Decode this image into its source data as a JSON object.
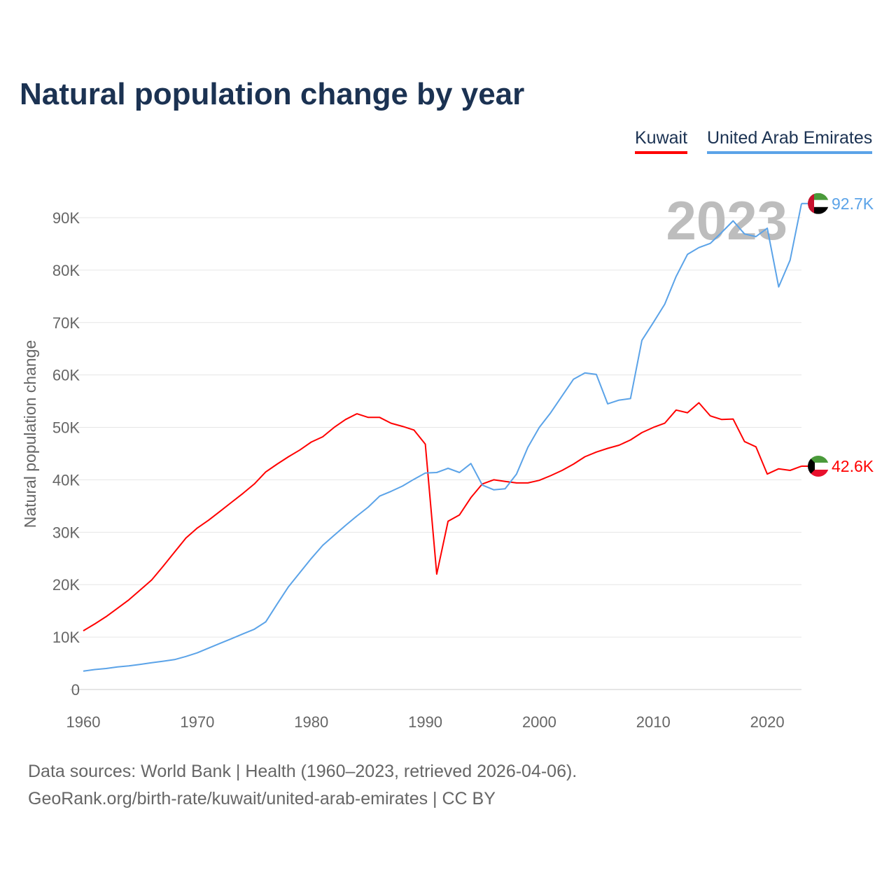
{
  "chart_data": {
    "type": "line",
    "title": "Natural population change by year",
    "xlabel": "",
    "ylabel": "Natural population change",
    "xlim": [
      1960,
      2023
    ],
    "ylim": [
      0,
      90000
    ],
    "x_ticks": [
      "1960",
      "1970",
      "1980",
      "1990",
      "2000",
      "2010",
      "2020"
    ],
    "y_ticks": [
      "0",
      "10K",
      "20K",
      "30K",
      "40K",
      "50K",
      "60K",
      "70K",
      "80K",
      "90K"
    ],
    "grid": true,
    "legend_position": "top-right",
    "year_label": "2023",
    "x": [
      1960,
      1961,
      1962,
      1963,
      1964,
      1965,
      1966,
      1967,
      1968,
      1969,
      1970,
      1971,
      1972,
      1973,
      1974,
      1975,
      1976,
      1977,
      1978,
      1979,
      1980,
      1981,
      1982,
      1983,
      1984,
      1985,
      1986,
      1987,
      1988,
      1989,
      1990,
      1991,
      1992,
      1993,
      1994,
      1995,
      1996,
      1997,
      1998,
      1999,
      2000,
      2001,
      2002,
      2003,
      2004,
      2005,
      2006,
      2007,
      2008,
      2009,
      2010,
      2011,
      2012,
      2013,
      2014,
      2015,
      2016,
      2017,
      2018,
      2019,
      2020,
      2021,
      2022,
      2023
    ],
    "series": [
      {
        "name": "Kuwait",
        "color": "#ff0000",
        "end_label": "42.6K",
        "values": [
          11.2,
          12.5,
          13.9,
          15.5,
          17.1,
          19.0,
          20.9,
          23.5,
          26.2,
          28.9,
          30.8,
          32.3,
          34.0,
          35.7,
          37.4,
          39.2,
          41.5,
          43.0,
          44.4,
          45.7,
          47.2,
          48.2,
          50.0,
          51.5,
          52.6,
          51.9,
          51.9,
          50.8,
          50.2,
          49.5,
          46.8,
          22.0,
          32.1,
          33.3,
          36.6,
          39.2,
          40.0,
          39.7,
          39.4,
          39.4,
          39.9,
          40.8,
          41.8,
          43.0,
          44.4,
          45.3,
          46.0,
          46.6,
          47.6,
          49.0,
          50.0,
          50.8,
          53.3,
          52.8,
          54.7,
          52.2,
          51.5,
          51.6,
          47.3,
          46.3,
          41.1,
          42.1,
          41.8,
          42.6
        ]
      },
      {
        "name": "United Arab Emirates",
        "color": "#5ba3e8",
        "end_label": "92.7K",
        "values": [
          3.5,
          3.8,
          4.0,
          4.3,
          4.5,
          4.8,
          5.1,
          5.4,
          5.7,
          6.3,
          7.0,
          7.9,
          8.8,
          9.7,
          10.6,
          11.5,
          12.9,
          16.3,
          19.6,
          22.3,
          25.0,
          27.5,
          29.4,
          31.3,
          33.1,
          34.8,
          36.9,
          37.8,
          38.8,
          40.1,
          41.3,
          41.4,
          42.2,
          41.4,
          43.1,
          39.0,
          38.1,
          38.3,
          41.1,
          46.2,
          50.0,
          52.8,
          56.0,
          59.2,
          60.4,
          60.1,
          54.5,
          55.2,
          55.5,
          66.6,
          70.0,
          73.5,
          78.8,
          83.0,
          84.3,
          85.1,
          87.2,
          89.4,
          86.9,
          86.4,
          88.0,
          76.8,
          81.9,
          92.7
        ]
      }
    ],
    "value_unit": "thousands"
  },
  "legend": {
    "kuwait": "Kuwait",
    "uae": "United Arab Emirates"
  },
  "footer": {
    "line1": "Data sources: World Bank | Health (1960–2023, retrieved 2026-04-06).",
    "line2": "GeoRank.org/birth-rate/kuwait/united-arab-emirates | CC BY"
  }
}
